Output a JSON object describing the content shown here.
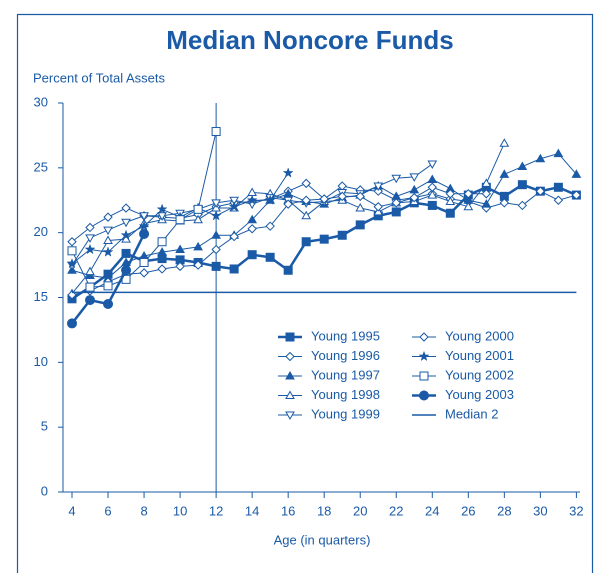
{
  "chart_data": {
    "type": "line",
    "title": "Median Noncore Funds",
    "y_axis_label": "Percent of Total Assets",
    "x_axis_label": "Age (in quarters)",
    "x": [
      4,
      5,
      6,
      7,
      8,
      9,
      10,
      11,
      12,
      13,
      14,
      15,
      16,
      17,
      18,
      19,
      20,
      21,
      22,
      23,
      24,
      25,
      26,
      27,
      28,
      29,
      30,
      31,
      32
    ],
    "xlim": [
      3.5,
      32.2
    ],
    "xticks": [
      4,
      6,
      8,
      10,
      12,
      14,
      16,
      18,
      20,
      22,
      24,
      26,
      28,
      30,
      32
    ],
    "ylim": [
      0,
      30
    ],
    "yticks": [
      0,
      5,
      10,
      15,
      20,
      25,
      30
    ],
    "vertical_line": 12,
    "legend": "lower right",
    "series": [
      {
        "name": "Young 1995",
        "color": "#1a5aa6",
        "marker": "square-filled",
        "values": [
          14.9,
          15.8,
          16.8,
          18.4,
          17.8,
          18.0,
          17.9,
          17.7,
          17.4,
          17.2,
          18.3,
          18.1,
          17.1,
          19.3,
          19.5,
          19.8,
          20.6,
          21.3,
          21.6,
          22.3,
          22.1,
          21.5,
          22.9,
          23.5,
          22.8,
          23.7,
          23.2,
          23.5,
          22.9
        ]
      },
      {
        "name": "Young 1996",
        "color": "#1a5aa6",
        "marker": "diamond-open",
        "values": [
          19.3,
          20.4,
          21.2,
          21.9,
          21.3,
          21.2,
          21.1,
          21.4,
          22.0,
          22.3,
          22.4,
          22.6,
          23.2,
          23.8,
          22.6,
          23.6,
          23.3,
          23.2,
          22.5,
          22.7,
          23.0,
          22.6,
          22.4,
          21.9,
          22.3,
          22.1,
          23.2,
          22.5,
          22.9
        ]
      },
      {
        "name": "Young 1997",
        "color": "#1a5aa6",
        "marker": "triangle-filled",
        "values": [
          17.1,
          16.7,
          16.5,
          17.7,
          18.2,
          18.5,
          18.7,
          18.9,
          19.8,
          19.8,
          21.0,
          22.5,
          23.0,
          22.4,
          22.2,
          22.7,
          22.9,
          23.6,
          22.8,
          23.3,
          24.1,
          23.4,
          22.5,
          22.2,
          24.5,
          25.1,
          25.7,
          26.1,
          24.5
        ]
      },
      {
        "name": "Young 1998",
        "color": "#1a5aa6",
        "marker": "triangle-open",
        "values": [
          15.3,
          17.0,
          19.4,
          19.5,
          20.7,
          21.0,
          20.9,
          21.0,
          21.9,
          21.9,
          23.1,
          23.0,
          22.5,
          21.3,
          22.4,
          22.5,
          21.9,
          21.6,
          22.3,
          22.4,
          22.9,
          22.4,
          22.0,
          23.8,
          26.9,
          null,
          null,
          null,
          null
        ]
      },
      {
        "name": "Young 1999",
        "color": "#1a5aa6",
        "marker": "triangle-down-open",
        "values": [
          17.5,
          19.6,
          20.2,
          20.8,
          21.3,
          21.3,
          21.5,
          21.8,
          22.3,
          22.5,
          22.2,
          22.7,
          22.5,
          22.3,
          22.4,
          23.1,
          23.0,
          23.6,
          24.2,
          24.3,
          25.3,
          null,
          null,
          null,
          null,
          null,
          null,
          null,
          null
        ]
      },
      {
        "name": "Young 2000",
        "color": "#1a5aa6",
        "marker": "diamond-open",
        "values": [
          15.2,
          15.5,
          16.2,
          16.8,
          16.9,
          17.2,
          17.4,
          17.5,
          18.7,
          19.7,
          20.3,
          20.5,
          22.2,
          22.5,
          22.6,
          22.8,
          22.8,
          22.0,
          22.3,
          22.7,
          23.5,
          23.0,
          23.0,
          23.0,
          null,
          null,
          null,
          null,
          null
        ]
      },
      {
        "name": "Young 2001",
        "color": "#1a5aa6",
        "marker": "star",
        "values": [
          17.6,
          18.7,
          18.5,
          19.8,
          20.5,
          21.8,
          21.2,
          21.9,
          21.3,
          22.0,
          22.5,
          22.5,
          24.6,
          null,
          null,
          null,
          null,
          null,
          null,
          null,
          null,
          null,
          null,
          null,
          null,
          null,
          null,
          null,
          null
        ]
      },
      {
        "name": "Young 2002",
        "color": "#1a5aa6",
        "marker": "square-open",
        "values": [
          18.6,
          15.8,
          15.9,
          16.4,
          17.7,
          19.3,
          21.0,
          21.8,
          27.8,
          null,
          null,
          null,
          null,
          null,
          null,
          null,
          null,
          null,
          null,
          null,
          null,
          null,
          null,
          null,
          null,
          null,
          null,
          null,
          null
        ]
      },
      {
        "name": "Young 2003",
        "color": "#1a5aa6",
        "marker": "circle-filled",
        "values": [
          13.0,
          14.8,
          14.5,
          17.1,
          19.9,
          null,
          null,
          null,
          null,
          null,
          null,
          null,
          null,
          null,
          null,
          null,
          null,
          null,
          null,
          null,
          null,
          null,
          null,
          null,
          null,
          null,
          null,
          null,
          null
        ]
      },
      {
        "name": "Median 2",
        "color": "#1a5aa6",
        "marker": "none",
        "values": [
          15.4,
          15.4,
          15.4,
          15.4,
          15.4,
          15.4,
          15.4,
          15.4,
          15.4,
          15.4,
          15.4,
          15.4,
          15.4,
          15.4,
          15.4,
          15.4,
          15.4,
          15.4,
          15.4,
          15.4,
          15.4,
          15.4,
          15.4,
          15.4,
          15.4,
          15.4,
          15.4,
          15.4,
          15.4
        ]
      }
    ]
  }
}
